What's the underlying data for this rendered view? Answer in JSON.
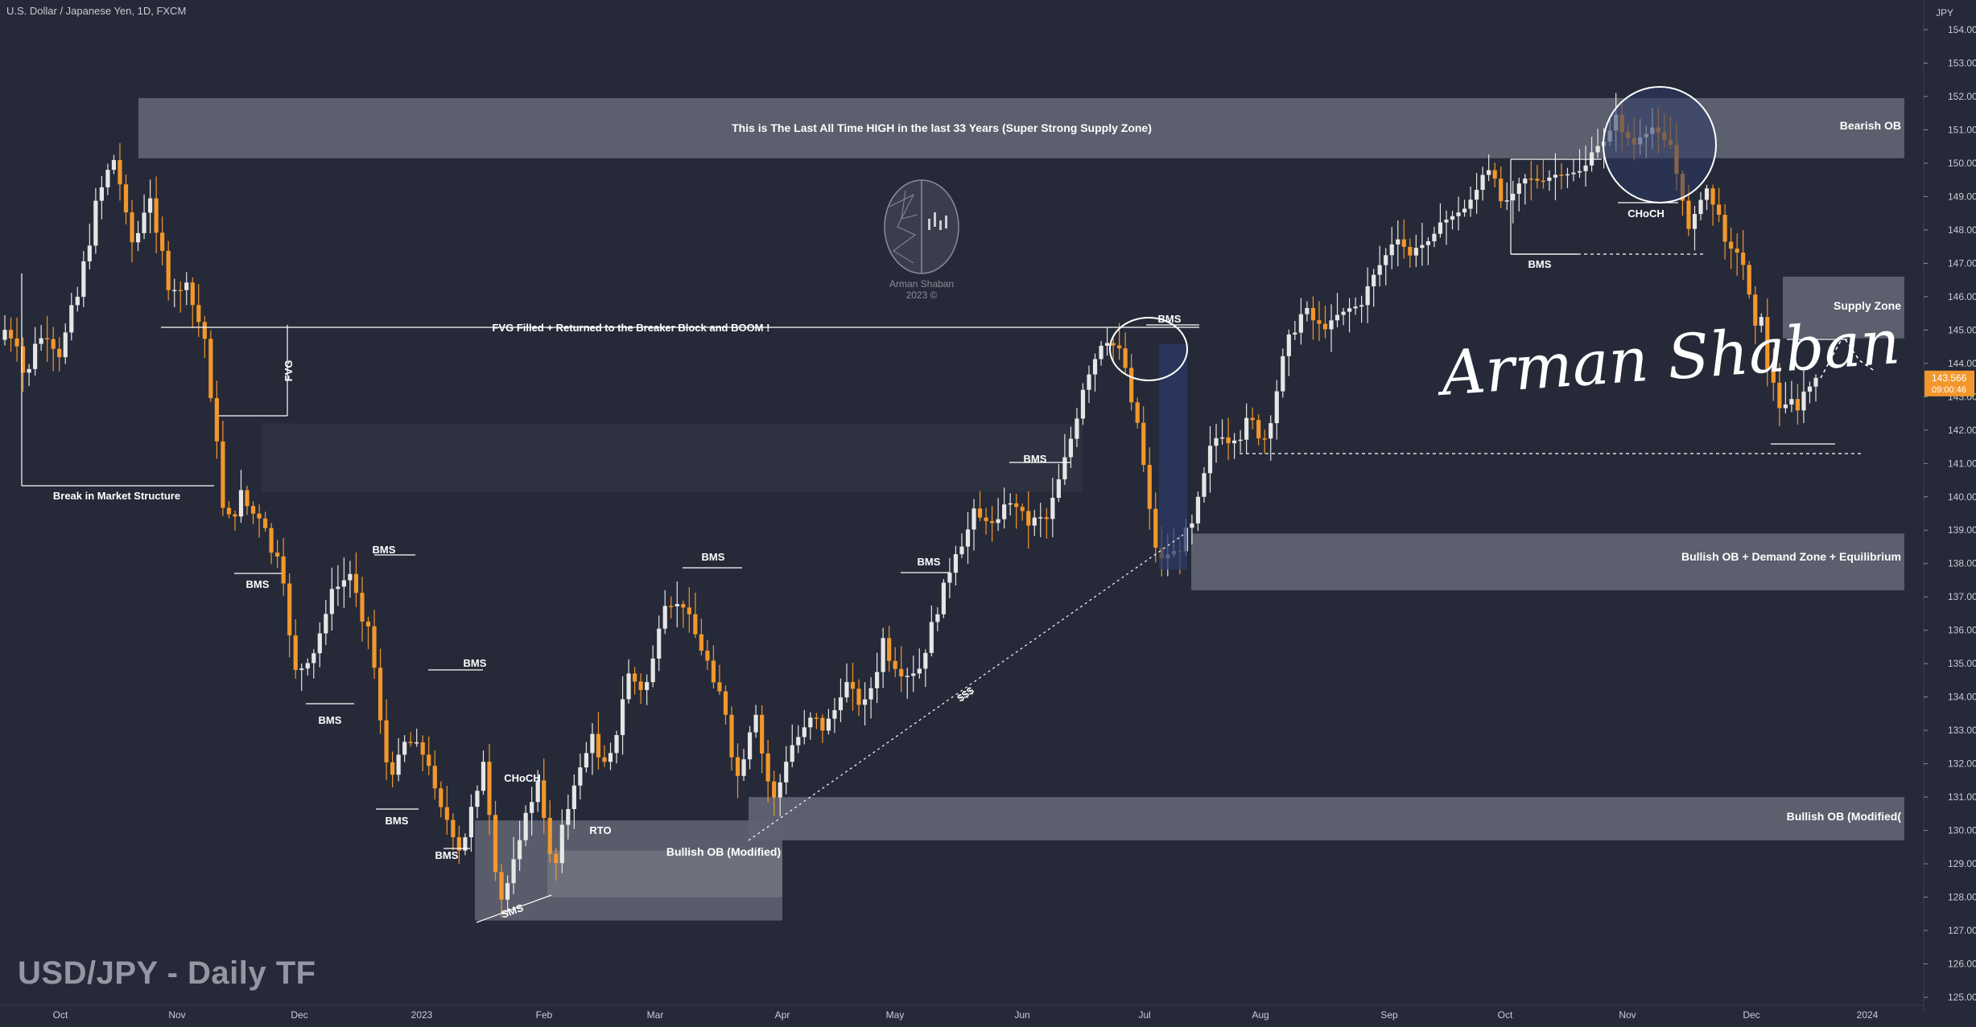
{
  "header": {
    "symbol_line": "U.S. Dollar / Japanese Yen, 1D, FXCM"
  },
  "watermark": {
    "title": "USD/JPY - Daily TF",
    "signature": "Arman Shaban",
    "logo_name": "Arman Shaban",
    "logo_year": "2023 ©"
  },
  "colors": {
    "background": "#262a38",
    "bull_candle": "#e6e6e6",
    "bear_candle": "#f2972c",
    "zone_fill": "#5f6270",
    "price_label_bg": "#f2972c",
    "order_block_blue": "#2b3a66"
  },
  "chart_data": {
    "type": "candlestick",
    "instrument": "USD/JPY",
    "timeframe": "1D",
    "currency_label": "JPY",
    "ylim": [
      124.5,
      154.5
    ],
    "y_ticks": [
      "154.000",
      "153.000",
      "152.000",
      "151.000",
      "150.000",
      "149.000",
      "148.000",
      "147.000",
      "146.000",
      "145.000",
      "144.000",
      "143.000",
      "142.000",
      "141.000",
      "140.000",
      "139.000",
      "138.000",
      "137.000",
      "136.000",
      "135.000",
      "134.000",
      "133.000",
      "132.000",
      "131.000",
      "130.000",
      "129.000",
      "128.000",
      "127.000",
      "126.000",
      "125.000"
    ],
    "x_labels": [
      "Oct",
      "Nov",
      "Dec",
      "2023",
      "Feb",
      "Mar",
      "Apr",
      "May",
      "Jun",
      "Jul",
      "Aug",
      "Sep",
      "Oct",
      "Nov",
      "Dec",
      "2024"
    ],
    "last_price": "143.566",
    "countdown": "09:00:46",
    "price_path": [
      [
        145.0,
        144
      ],
      [
        143.6,
        141.5
      ],
      [
        144.8,
        144
      ],
      [
        144.3,
        145
      ],
      [
        146.0,
        147.5
      ],
      [
        148.8,
        149.5
      ],
      [
        150.2,
        151.9
      ],
      [
        147.5,
        146.5
      ],
      [
        148.8,
        147.2
      ],
      [
        146.4,
        147.8
      ],
      [
        146.1,
        144.9
      ],
      [
        144.6,
        143.2
      ],
      [
        139.3,
        138.8
      ],
      [
        139.9,
        141.9
      ],
      [
        139.2,
        138.4
      ],
      [
        137.8,
        136.6
      ],
      [
        134.6,
        133.6
      ],
      [
        135.6,
        137.4
      ],
      [
        137.2,
        135.8
      ],
      [
        137.7,
        136.8
      ],
      [
        135.8,
        133.9
      ],
      [
        131.4,
        130.9
      ],
      [
        132.7,
        134.4
      ],
      [
        132.2,
        132.0
      ],
      [
        130.5,
        130.1
      ],
      [
        129.4,
        131.0
      ],
      [
        132.3,
        128.9
      ],
      [
        127.7,
        127.5
      ],
      [
        129.2,
        130.4
      ],
      [
        131.6,
        128.7
      ],
      [
        128.6,
        130.0
      ],
      [
        131.3,
        132.2
      ],
      [
        132.7,
        130.9
      ],
      [
        131.7,
        133.0
      ],
      [
        134.7,
        135.5
      ],
      [
        134.2,
        135.2
      ],
      [
        136.4,
        135.3
      ],
      [
        136.9,
        137.4
      ],
      [
        135.5,
        136.1
      ],
      [
        134.6,
        132.4
      ],
      [
        131.5,
        133.0
      ],
      [
        133.2,
        131.3
      ],
      [
        130.8,
        131.9
      ],
      [
        132.5,
        131.6
      ],
      [
        133.3,
        133.9
      ],
      [
        133.1,
        134.7
      ],
      [
        134.5,
        134.2
      ],
      [
        133.6,
        134.8
      ],
      [
        135.7,
        137.2
      ],
      [
        134.5,
        134.1
      ],
      [
        134.9,
        135.7
      ],
      [
        136.7,
        137.4
      ],
      [
        138.4,
        138.8
      ],
      [
        139.3,
        140.7
      ],
      [
        139.3,
        138.7
      ],
      [
        139.9,
        139.5
      ],
      [
        139.2,
        140.1
      ],
      [
        139.3,
        140.4
      ],
      [
        141.1,
        142.2
      ],
      [
        143.5,
        144.4
      ],
      [
        144.6,
        144.5
      ],
      [
        144.5,
        144.2
      ],
      [
        142.0,
        140.8
      ],
      [
        138.1,
        137.9
      ],
      [
        138.4,
        138.5
      ],
      [
        138.9,
        141.2
      ],
      [
        141.9,
        141.4
      ],
      [
        141.2,
        139.6
      ],
      [
        142.2,
        143.8
      ],
      [
        141.7,
        141.8
      ],
      [
        144.5,
        145.0
      ],
      [
        145.6,
        146.3
      ],
      [
        145.0,
        145.6
      ],
      [
        145.6,
        144.9
      ],
      [
        145.7,
        146.4
      ],
      [
        146.8,
        147.1
      ],
      [
        147.7,
        147.4
      ],
      [
        147.2,
        146.3
      ],
      [
        147.9,
        147.6
      ],
      [
        148.4,
        148.1
      ],
      [
        148.7,
        149.3
      ],
      [
        149.8,
        149.0
      ],
      [
        148.8,
        148.3
      ],
      [
        149.5,
        149.9
      ],
      [
        149.5,
        149.7
      ],
      [
        149.7,
        149.9
      ],
      [
        149.7,
        149.9
      ],
      [
        150.3,
        149.4
      ],
      [
        151.4,
        150.9
      ],
      [
        150.5,
        149.9
      ],
      [
        151.1,
        151.6
      ],
      [
        150.7,
        149.7
      ],
      [
        148.0,
        147.8
      ],
      [
        149.3,
        149.5
      ],
      [
        147.9,
        147.1
      ],
      [
        147.0,
        146.9
      ],
      [
        144.9,
        142.6
      ],
      [
        142.6,
        142.2
      ],
      [
        142.9,
        144.4
      ],
      [
        143.566,
        143.566
      ]
    ],
    "zones": [
      {
        "label": "This is The Last All Time HIGH in the last 33 Years (Super Strong Supply Zone)",
        "y0": 150.15,
        "y1": 151.95
      },
      {
        "label": "Bearish OB",
        "y0": 150.15,
        "y1": 151.95
      },
      {
        "label": "Supply Zone",
        "y0": 144.75,
        "y1": 146.6
      },
      {
        "label": "",
        "y0": 140.15,
        "y1": 142.2
      },
      {
        "label": "Bullish OB + Demand Zone + Equilibrium",
        "y0": 137.2,
        "y1": 138.9
      },
      {
        "label": "Bullish OB (Modified(",
        "y0": 129.7,
        "y1": 131.0
      },
      {
        "label": "Bullish OB (Modified)",
        "y0": 127.3,
        "y1": 130.3
      }
    ],
    "annotations": [
      "Break in Market Structure",
      "FVG",
      "FVG Filled + Returned to the Breaker Block and BOOM !",
      "BMS",
      "BMS",
      "BMS",
      "BMS",
      "BMS",
      "BMS",
      "BMS",
      "BMS",
      "BMS",
      "BMS",
      "BMS",
      "CHoCH",
      "CHoCH",
      "RTO",
      "SMS",
      "$$$"
    ]
  }
}
